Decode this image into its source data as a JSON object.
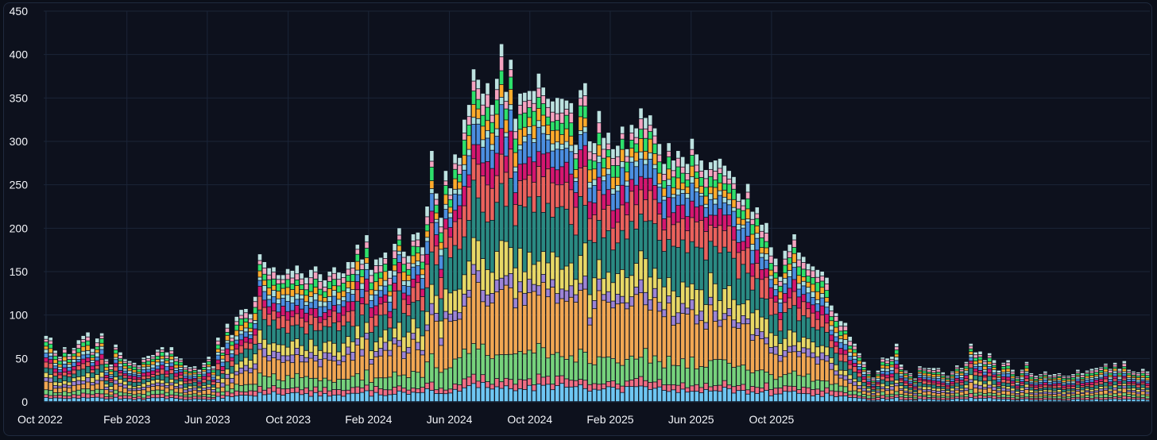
{
  "chart_data": {
    "type": "bar",
    "stacked": true,
    "title": "",
    "xlabel": "",
    "ylabel": "",
    "ylim": [
      0,
      450
    ],
    "grid": true,
    "legend": "none",
    "y_ticks": [
      "0",
      "50",
      "100",
      "150",
      "200",
      "250",
      "300",
      "350",
      "400",
      "450"
    ],
    "x_ticks": [
      "Oct 2022",
      "Feb 2023",
      "Jun 2023",
      "Oct 2023",
      "Feb 2024",
      "Jun 2024",
      "Oct 2024",
      "Feb 2025",
      "Jun 2025",
      "Oct 2025"
    ],
    "x_tick_positions": [
      0,
      17.4,
      34.7,
      52.1,
      69.4,
      86.8,
      104.1,
      121.4,
      138.8,
      156.1
    ],
    "totals": [
      76,
      74,
      59,
      52,
      63,
      55,
      62,
      71,
      76,
      80,
      61,
      73,
      79,
      49,
      43,
      66,
      57,
      49,
      47,
      45,
      42,
      51,
      53,
      54,
      60,
      63,
      57,
      63,
      52,
      50,
      42,
      40,
      41,
      37,
      45,
      52,
      41,
      74,
      63,
      90,
      77,
      98,
      106,
      107,
      101,
      121,
      170,
      161,
      154,
      155,
      146,
      146,
      153,
      151,
      157,
      148,
      143,
      152,
      156,
      147,
      140,
      150,
      155,
      149,
      148,
      161,
      161,
      181,
      164,
      192,
      152,
      164,
      166,
      172,
      151,
      182,
      200,
      173,
      168,
      193,
      195,
      178,
      225,
      289,
      240,
      212,
      266,
      246,
      285,
      281,
      325,
      342,
      383,
      371,
      355,
      367,
      342,
      372,
      412,
      357,
      394,
      326,
      355,
      356,
      358,
      358,
      378,
      362,
      349,
      346,
      350,
      349,
      347,
      344,
      296,
      359,
      367,
      300,
      298,
      335,
      304,
      310,
      291,
      295,
      317,
      291,
      319,
      315,
      338,
      327,
      330,
      315,
      297,
      274,
      298,
      278,
      289,
      282,
      274,
      303,
      285,
      278,
      267,
      276,
      278,
      280,
      272,
      266,
      259,
      240,
      233,
      251,
      219,
      224,
      204,
      206,
      178,
      165,
      144,
      174,
      181,
      193,
      172,
      167,
      159,
      156,
      152,
      150,
      143,
      111,
      102,
      93,
      91,
      75,
      67,
      56,
      46,
      36,
      28,
      36,
      51,
      50,
      52,
      67,
      43,
      36,
      33,
      27,
      41,
      39,
      39,
      39,
      39,
      34,
      30,
      35,
      42,
      39,
      46,
      67,
      57,
      58,
      48,
      56,
      48,
      36,
      45,
      48,
      37,
      29,
      37,
      46,
      33,
      30,
      32,
      35,
      31,
      32,
      33,
      30,
      30,
      32,
      37,
      33,
      36,
      38,
      39,
      40,
      44,
      38,
      45,
      38,
      47,
      37,
      35,
      34,
      38,
      35
    ]
  },
  "colors": {
    "segments": [
      "#6ec6f2",
      "#ef6e84",
      "#76d27c",
      "#f1a753",
      "#9c84d6",
      "#e7d866",
      "#2a8a82",
      "#ea615c",
      "#d4166f",
      "#4b8ee0",
      "#a6e0de",
      "#ffab2b",
      "#2ee06a",
      "#f5a3c0",
      "#bde2e0"
    ],
    "background": "#0d111d",
    "grid": "#1b2538",
    "tick_text": "#f2f4f8"
  }
}
